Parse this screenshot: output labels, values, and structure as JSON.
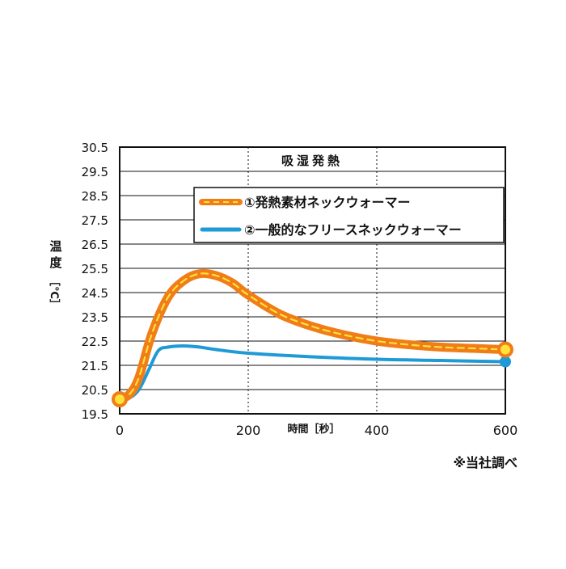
{
  "chart_data": {
    "type": "line",
    "title": "吸湿発熱",
    "xlabel": "時間［秒］",
    "ylabel_chars": [
      "温",
      "度"
    ],
    "ylabel_unit": "［℃］",
    "x_ticks": [
      0,
      200,
      400,
      600
    ],
    "y_ticks": [
      "19.5",
      "20.5",
      "21.5",
      "22.5",
      "23.5",
      "24.5",
      "25.5",
      "26.5",
      "27.5",
      "28.5",
      "29.5",
      "30.5"
    ],
    "xlim": [
      0,
      600
    ],
    "ylim": [
      19.5,
      30.5
    ],
    "grid": true,
    "legend_position": "top-right",
    "series": [
      {
        "name": "①発熱素材ネックウォーマー",
        "color": "#f07d18",
        "inner_color": "#ffe23a",
        "style": "thick-dashed",
        "x": [
          0,
          15,
          30,
          50,
          75,
          100,
          125,
          150,
          175,
          200,
          250,
          300,
          350,
          400,
          450,
          500,
          550,
          600
        ],
        "y": [
          20.1,
          20.3,
          21.0,
          22.8,
          24.3,
          25.0,
          25.28,
          25.2,
          24.9,
          24.4,
          23.6,
          23.1,
          22.75,
          22.5,
          22.35,
          22.25,
          22.2,
          22.15
        ]
      },
      {
        "name": "②一般的なフリースネックウォーマー",
        "color": "#1e9ad6",
        "style": "solid",
        "x": [
          0,
          15,
          30,
          45,
          60,
          75,
          100,
          125,
          150,
          200,
          300,
          400,
          500,
          600
        ],
        "y": [
          20.1,
          20.15,
          20.5,
          21.3,
          22.1,
          22.25,
          22.3,
          22.25,
          22.15,
          22.0,
          21.85,
          21.75,
          21.7,
          21.65
        ]
      }
    ]
  },
  "footnote": "※当社調べ"
}
